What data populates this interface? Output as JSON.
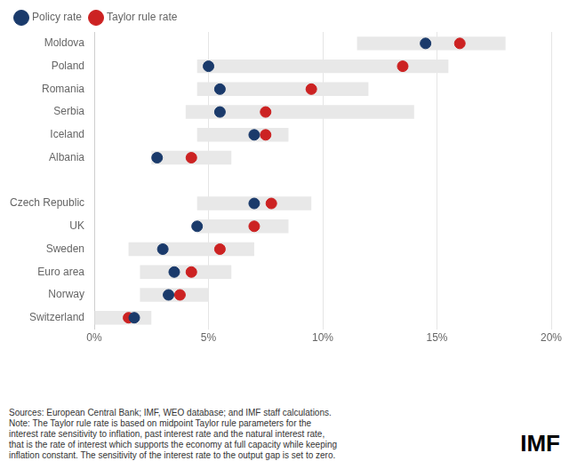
{
  "chart_data": {
    "type": "bar",
    "orientation": "horizontal",
    "categories": [
      "Moldova",
      "Poland",
      "Romania",
      "Serbia",
      "Iceland",
      "Albania",
      null,
      "Czech Republic",
      "UK",
      "Sweden",
      "Euro area",
      "Norway",
      "Switzerland"
    ],
    "series": [
      {
        "name": "Policy rate",
        "type": "scatter",
        "marker": "circle",
        "color": "#1a3a6b",
        "values": [
          14.5,
          5.0,
          5.5,
          5.5,
          7.0,
          2.75,
          null,
          7.0,
          4.5,
          3.0,
          3.5,
          3.25,
          1.75
        ]
      },
      {
        "name": "Taylor rule rate",
        "type": "scatter",
        "marker": "circle",
        "color": "#cc2222",
        "values": [
          16.0,
          13.5,
          9.5,
          7.5,
          7.5,
          4.25,
          null,
          7.75,
          7.0,
          5.5,
          4.25,
          3.75,
          1.5
        ]
      }
    ],
    "range": {
      "color": "#e8e8e8",
      "low": [
        11.5,
        4.5,
        4.5,
        4.0,
        4.5,
        2.5,
        null,
        4.5,
        4.5,
        1.5,
        2.0,
        2.0,
        0.0
      ],
      "high": [
        18.0,
        15.5,
        12.0,
        14.0,
        8.5,
        6.0,
        null,
        9.5,
        8.5,
        7.0,
        6.0,
        5.0,
        2.5
      ]
    },
    "xlim": [
      0,
      20
    ],
    "xticks": [
      {
        "value": 0,
        "label": "0%"
      },
      {
        "value": 5,
        "label": "5%"
      },
      {
        "value": 10,
        "label": "10%"
      },
      {
        "value": 15,
        "label": "15%"
      },
      {
        "value": 20,
        "label": "20%"
      }
    ],
    "grid": true,
    "legend": "top",
    "annotations": [
      "Sources: European Central Bank; IMF, WEO database; and IMF staff calculations.\nNote: The Taylor rule rate is based on midpoint Taylor rule parameters for the\ninterest rate sensitivity to inflation, past interest rate and the natural interest rate,\nthat is the rate of interest which supports the economy at full capacity while keeping\ninflation constant. The sensitivity of the interest rate to the output gap is set to zero.",
      "IMF"
    ]
  }
}
